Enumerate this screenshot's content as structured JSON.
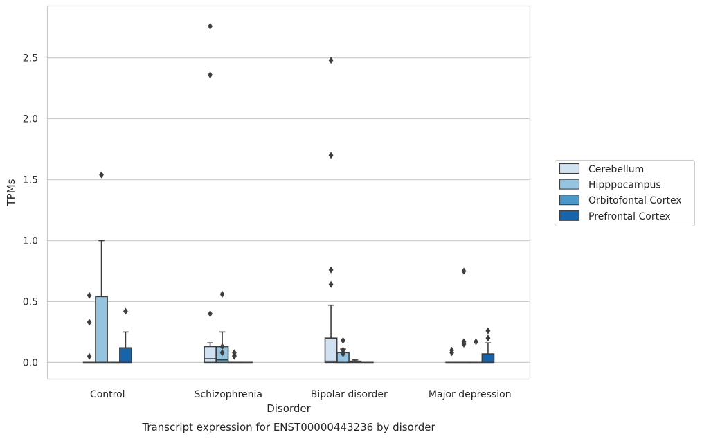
{
  "chart_data": {
    "type": "box",
    "title": "Transcript expression for ENST00000443236 by disorder",
    "xlabel": "Disorder",
    "ylabel": "TPMs",
    "ylim": [
      -0.14,
      2.93
    ],
    "yticks": [
      "0.0",
      "0.5",
      "1.0",
      "1.5",
      "2.0",
      "2.5"
    ],
    "grid": true,
    "legend_position": "right",
    "categories": [
      "Control",
      "Schizophrenia",
      "Bipolar disorder",
      "Major depression"
    ],
    "series": [
      {
        "name": "Cerebellum",
        "color": "#d0e1f2",
        "boxes": [
          {
            "q1": 0,
            "median": 0,
            "q3": 0,
            "whisker_low": 0,
            "whisker_high": 0,
            "outliers": [
              0.55,
              0.33,
              0.05
            ]
          },
          {
            "q1": 0,
            "median": 0.03,
            "q3": 0.13,
            "whisker_low": 0,
            "whisker_high": 0.16,
            "outliers": [
              2.76,
              2.36,
              0.4
            ]
          },
          {
            "q1": 0,
            "median": 0.01,
            "q3": 0.2,
            "whisker_low": 0,
            "whisker_high": 0.47,
            "outliers": [
              2.48,
              1.7,
              0.76,
              0.64
            ]
          },
          {
            "q1": 0,
            "median": 0,
            "q3": 0,
            "whisker_low": 0,
            "whisker_high": 0,
            "outliers": [
              0.1,
              0.08
            ]
          }
        ]
      },
      {
        "name": "Hipppocampus",
        "color": "#94c4df",
        "boxes": [
          {
            "q1": 0,
            "median": 0,
            "q3": 0.54,
            "whisker_low": 0,
            "whisker_high": 1.0,
            "outliers": [
              1.54
            ]
          },
          {
            "q1": 0,
            "median": 0.02,
            "q3": 0.13,
            "whisker_low": 0,
            "whisker_high": 0.25,
            "outliers": [
              0.56,
              0.13,
              0.08
            ]
          },
          {
            "q1": 0,
            "median": 0,
            "q3": 0.08,
            "whisker_low": 0,
            "whisker_high": 0.11,
            "outliers": [
              0.18,
              0.1,
              0.07
            ]
          },
          {
            "q1": 0,
            "median": 0,
            "q3": 0,
            "whisker_low": 0,
            "whisker_high": 0,
            "outliers": [
              0.75,
              0.17,
              0.15
            ]
          }
        ]
      },
      {
        "name": "Orbitofontal Cortex",
        "color": "#4a98c9",
        "boxes": [
          {
            "q1": 0,
            "median": 0,
            "q3": 0,
            "whisker_low": 0,
            "whisker_high": 0,
            "outliers": []
          },
          {
            "q1": 0,
            "median": 0,
            "q3": 0,
            "whisker_low": 0,
            "whisker_high": 0,
            "outliers": [
              0.08,
              0.06,
              0.05
            ]
          },
          {
            "q1": 0,
            "median": 0,
            "q3": 0.01,
            "whisker_low": 0,
            "whisker_high": 0.02,
            "outliers": []
          },
          {
            "q1": 0,
            "median": 0,
            "q3": 0,
            "whisker_low": 0,
            "whisker_high": 0,
            "outliers": [
              0.17
            ]
          }
        ]
      },
      {
        "name": "Prefrontal Cortex",
        "color": "#1764ab",
        "boxes": [
          {
            "q1": 0,
            "median": 0,
            "q3": 0.12,
            "whisker_low": 0,
            "whisker_high": 0.25,
            "outliers": [
              0.42
            ]
          },
          {
            "q1": 0,
            "median": 0,
            "q3": 0,
            "whisker_low": 0,
            "whisker_high": 0,
            "outliers": []
          },
          {
            "q1": 0,
            "median": 0,
            "q3": 0,
            "whisker_low": 0,
            "whisker_high": 0,
            "outliers": []
          },
          {
            "q1": 0,
            "median": 0,
            "q3": 0.07,
            "whisker_low": 0,
            "whisker_high": 0.16,
            "outliers": [
              0.26,
              0.2
            ]
          }
        ]
      }
    ]
  }
}
